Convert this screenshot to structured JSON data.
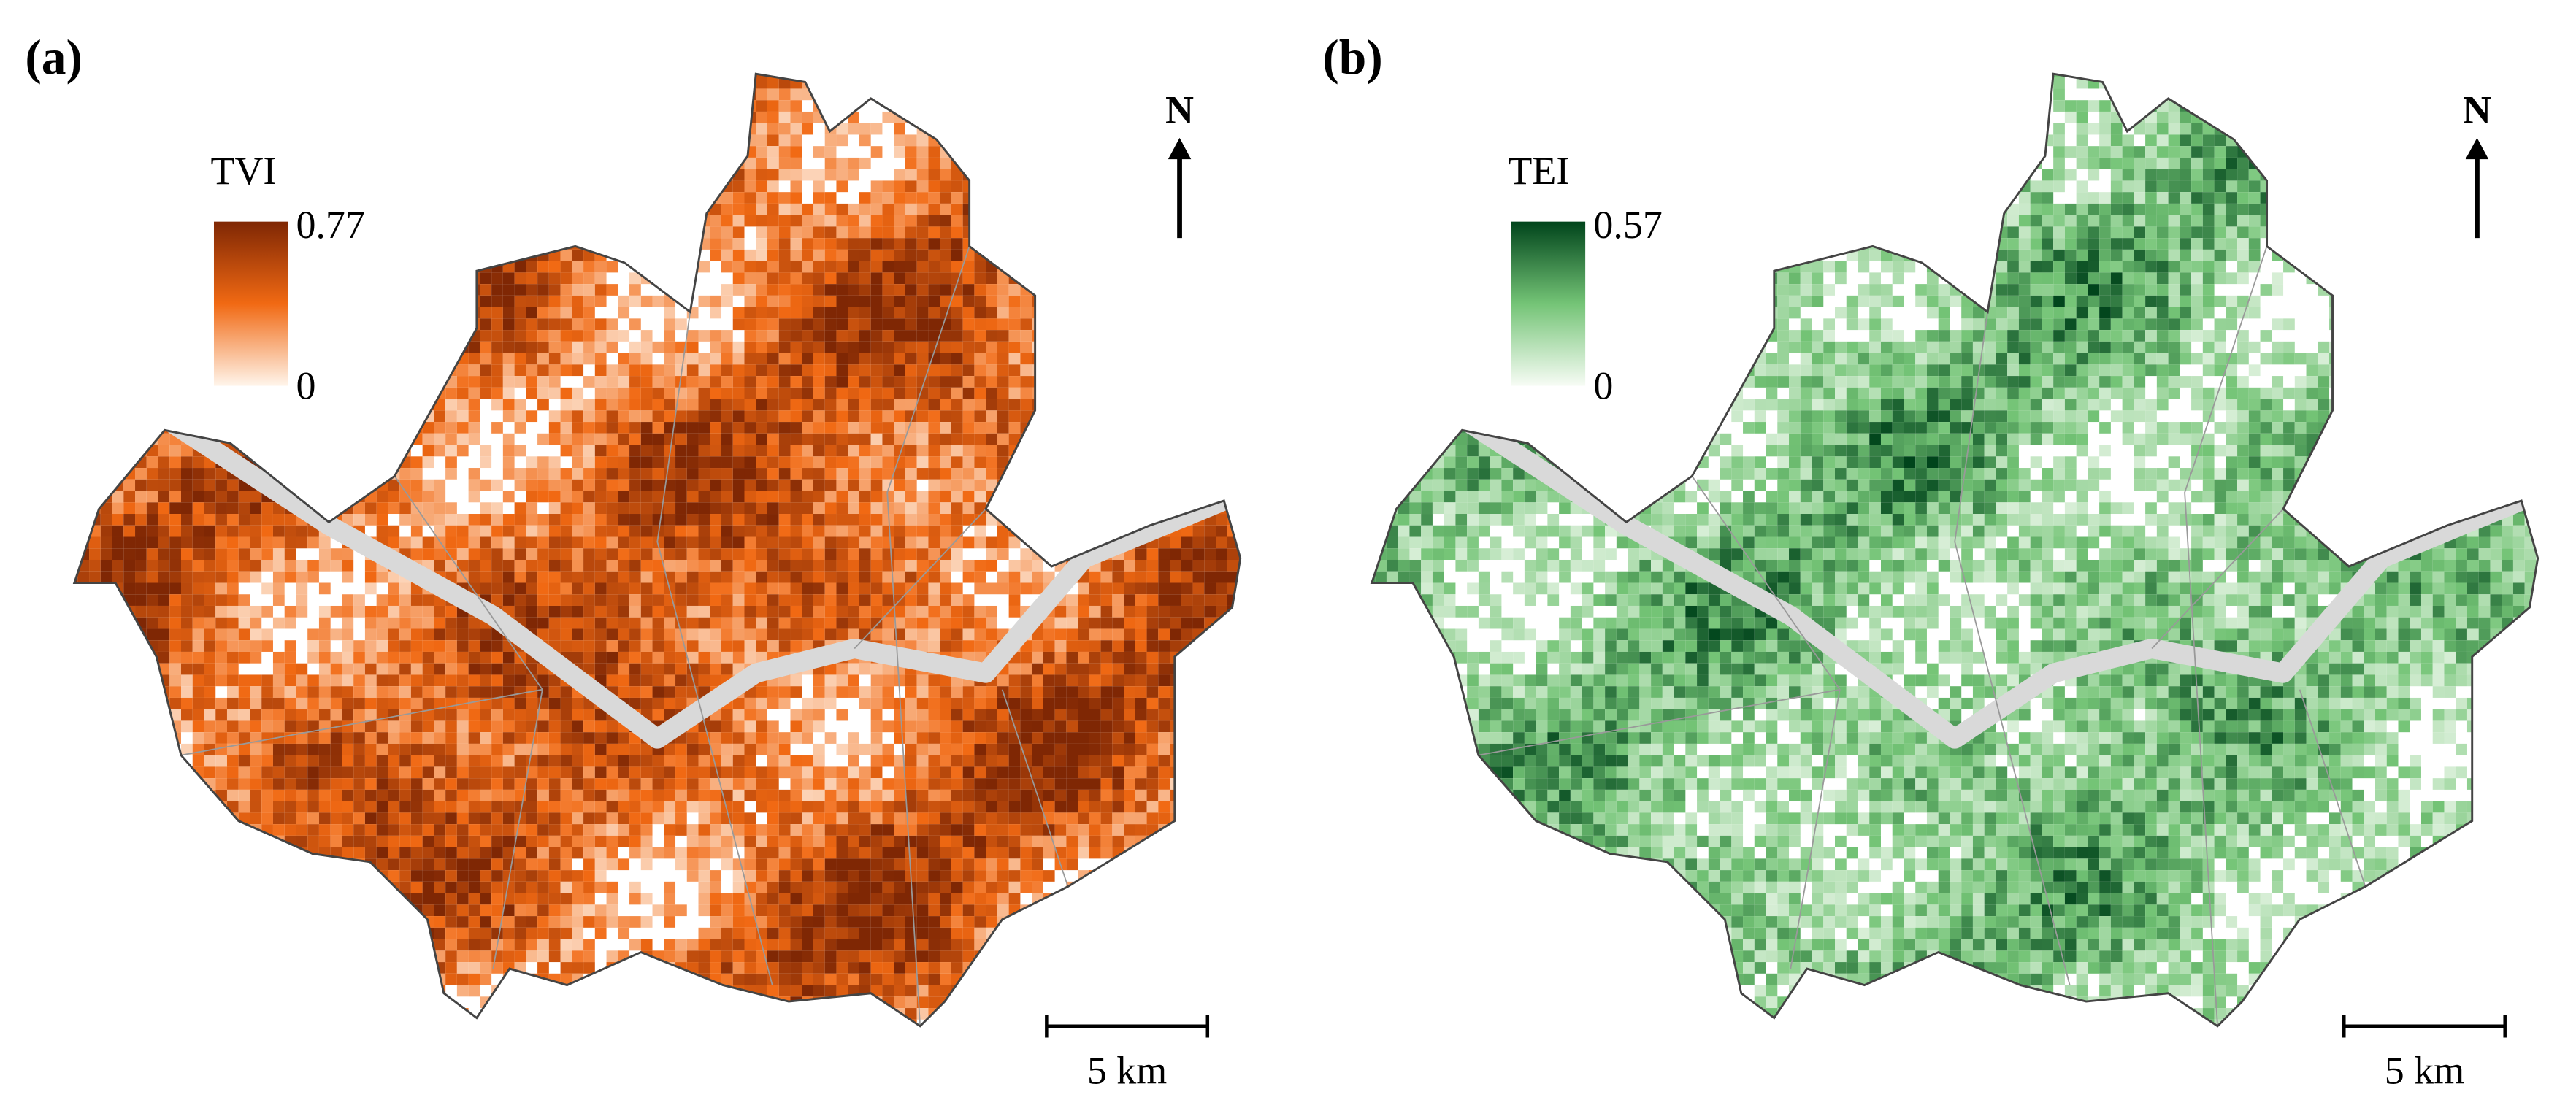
{
  "panels": [
    {
      "label": "(a)",
      "legend": {
        "title": "TVI",
        "max": 0.77,
        "min": 0,
        "colors": [
          "#fff5eb",
          "#f16913",
          "#7f2704"
        ]
      },
      "north": "N",
      "scale_bar": "5 km"
    },
    {
      "label": "(b)",
      "legend": {
        "title": "TEI",
        "max": 0.57,
        "min": 0,
        "colors": [
          "#f7fcf5",
          "#74c476",
          "#00441b"
        ]
      },
      "north": "N",
      "scale_bar": "5 km"
    }
  ]
}
